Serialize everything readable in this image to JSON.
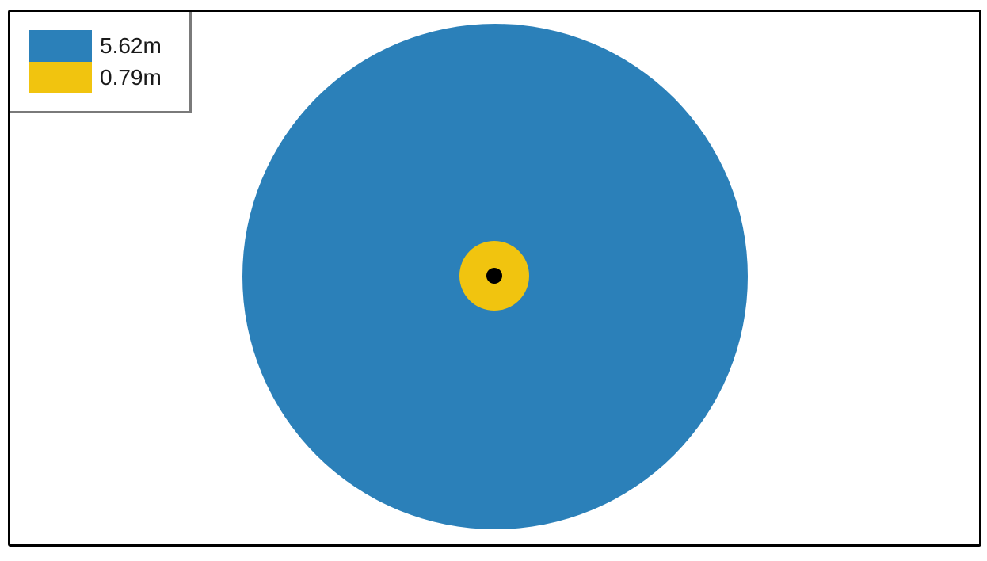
{
  "legend": {
    "items": [
      {
        "label": "5.62m",
        "color": "#2b80b9"
      },
      {
        "label": "0.79m",
        "color": "#f1c40f"
      }
    ]
  },
  "circles": [
    {
      "radius_m": 5.62,
      "color": "#2b80b9"
    },
    {
      "radius_m": 0.79,
      "color": "#f1c40f"
    }
  ],
  "center_marker": {
    "color": "#000000"
  }
}
